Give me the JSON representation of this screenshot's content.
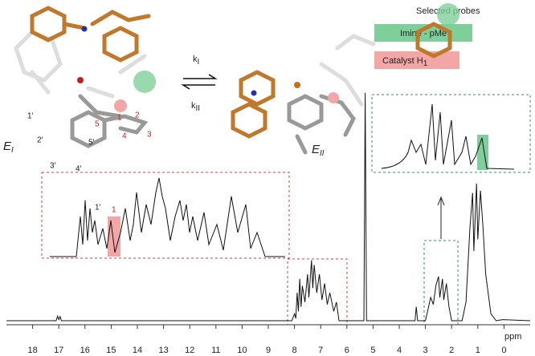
{
  "chart_data": {
    "type": "line",
    "xlabel": "ppm",
    "xlim": [
      19,
      -1
    ],
    "ylim": [
      0,
      100
    ],
    "xticks": [
      18,
      17,
      16,
      15,
      14,
      13,
      12,
      11,
      10,
      9,
      8,
      7,
      6,
      5,
      4,
      3,
      2,
      1,
      0
    ],
    "color": "#111",
    "x": [
      19,
      17.1,
      17.05,
      17.0,
      16.95,
      16.9,
      8.1,
      8.0,
      7.95,
      7.9,
      7.85,
      7.8,
      7.75,
      7.7,
      7.6,
      7.5,
      7.45,
      7.35,
      7.3,
      7.25,
      7.15,
      7.05,
      6.95,
      6.85,
      6.75,
      6.65,
      6.5,
      6.4,
      6.3,
      5.35,
      5.3,
      5.25,
      3.4,
      3.35,
      3.3,
      3.0,
      2.9,
      2.8,
      2.7,
      2.6,
      2.5,
      2.45,
      2.35,
      2.3,
      2.2,
      2.1,
      2.0,
      1.6,
      1.45,
      1.3,
      1.2,
      1.15,
      1.05,
      1.0,
      0.9,
      0.8,
      0.7,
      0.5,
      0.3,
      0.05,
      -1
    ],
    "values": [
      0,
      0,
      2,
      0.5,
      1.8,
      0,
      0,
      3,
      1,
      12,
      4,
      18,
      6,
      15,
      8,
      20,
      10,
      26,
      14,
      24,
      12,
      20,
      9,
      16,
      7,
      12,
      4,
      8,
      0,
      0,
      98,
      0,
      0,
      6,
      0,
      0,
      5,
      10,
      7,
      15,
      19,
      10,
      18,
      9,
      16,
      6,
      0,
      0,
      8,
      40,
      55,
      30,
      59,
      35,
      56,
      40,
      20,
      3,
      0,
      0.5,
      0
    ]
  },
  "labels": {
    "probes_title": "Selected probes",
    "probe_imine": "Imine - pMe",
    "probe_catalyst": {
      "text": "Catalyst  H",
      "subscript": "1"
    },
    "k_forward": {
      "symbol": "k",
      "subscript": "I"
    },
    "k_backward": {
      "symbol": "k",
      "subscript": "II"
    },
    "state_1": {
      "symbol": "E",
      "subscript": "I"
    },
    "state_2": {
      "symbol": "E",
      "subscript": "II"
    },
    "atoms_black": [
      "1'",
      "2'",
      "3'",
      "4'",
      "5'"
    ],
    "atoms_red": [
      "1",
      "2",
      "3",
      "4",
      "5"
    ],
    "inset_black": "1'",
    "inset_red": "1"
  }
}
